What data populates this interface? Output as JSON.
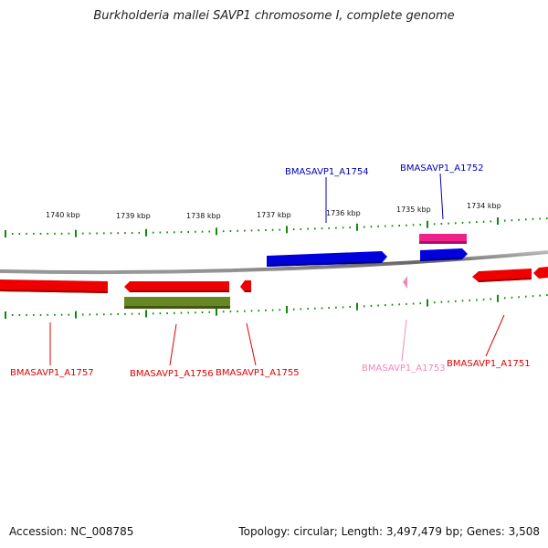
{
  "title": "Burkholderia mallei SAVP1 chromosome I, complete genome",
  "footer": {
    "accession": "Accession: NC_008785",
    "summary": "Topology: circular; Length: 3,497,479 bp; Genes: 3,508"
  },
  "scale_labels": [
    "1740 kbp",
    "1739 kbp",
    "1738 kbp",
    "1737 kbp",
    "1736 kbp",
    "1735 kbp",
    "1734 kbp"
  ],
  "colors": {
    "red": "#ee0000",
    "blue": "#0000dd",
    "pink": "#ee2288",
    "olive": "#668822",
    "light_pink": "#ee88bb",
    "ticks": "#118811",
    "backbone": "#888888"
  },
  "gene_labels": [
    {
      "label": "BMASAVP1_A1754",
      "color": "#0000bb"
    },
    {
      "label": "BMASAVP1_A1752",
      "color": "#0000bb"
    },
    {
      "label": "BMASAVP1_A1757",
      "color": "#dd0000"
    },
    {
      "label": "BMASAVP1_A1756",
      "color": "#dd0000"
    },
    {
      "label": "BMASAVP1_A1755",
      "color": "#dd0000"
    },
    {
      "label": "BMASAVP1_A1753",
      "color": "#ee88bb"
    },
    {
      "label": "BMASAVP1_A1751",
      "color": "#dd0000"
    }
  ]
}
